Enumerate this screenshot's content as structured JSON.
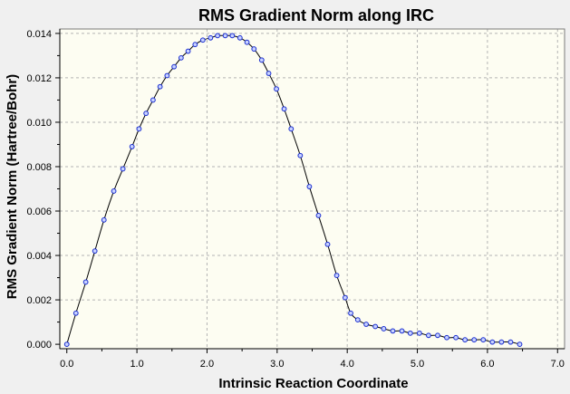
{
  "chart_data": {
    "type": "line",
    "title": "RMS Gradient Norm along IRC",
    "xlabel": "Intrinsic Reaction Coordinate",
    "ylabel": "RMS Gradient Norm (Hartree/Bohr)",
    "xlim": [
      -0.1,
      7.1
    ],
    "ylim": [
      -0.0002,
      0.0142
    ],
    "xticks": [
      0.0,
      1.0,
      2.0,
      3.0,
      4.0,
      5.0,
      6.0,
      7.0
    ],
    "xtick_labels": [
      "0.0",
      "1.0",
      "2.0",
      "3.0",
      "4.0",
      "5.0",
      "6.0",
      "7.0"
    ],
    "yticks": [
      0.0,
      0.002,
      0.004,
      0.006,
      0.008,
      0.01,
      0.012,
      0.014
    ],
    "ytick_labels": [
      "0.000",
      "0.002",
      "0.004",
      "0.006",
      "0.008",
      "0.010",
      "0.012",
      "0.014"
    ],
    "grid": true,
    "x": [
      0.0,
      0.13,
      0.27,
      0.4,
      0.53,
      0.67,
      0.8,
      0.93,
      1.03,
      1.13,
      1.23,
      1.33,
      1.43,
      1.53,
      1.63,
      1.73,
      1.83,
      1.94,
      2.05,
      2.15,
      2.26,
      2.36,
      2.47,
      2.57,
      2.67,
      2.78,
      2.88,
      2.99,
      3.1,
      3.2,
      3.33,
      3.46,
      3.59,
      3.72,
      3.85,
      3.97,
      4.05,
      4.15,
      4.27,
      4.4,
      4.52,
      4.65,
      4.78,
      4.9,
      5.03,
      5.16,
      5.29,
      5.42,
      5.55,
      5.68,
      5.81,
      5.94,
      6.07,
      6.2,
      6.33,
      6.46
    ],
    "y": [
      0.0,
      0.0014,
      0.0028,
      0.0042,
      0.0056,
      0.0069,
      0.0079,
      0.0089,
      0.0097,
      0.0104,
      0.011,
      0.0116,
      0.0121,
      0.0125,
      0.0129,
      0.0132,
      0.0135,
      0.0137,
      0.0138,
      0.0139,
      0.0139,
      0.0139,
      0.0138,
      0.0136,
      0.0133,
      0.0128,
      0.0122,
      0.0115,
      0.0106,
      0.0097,
      0.0085,
      0.0071,
      0.0058,
      0.0045,
      0.0031,
      0.0021,
      0.0014,
      0.0011,
      0.0009,
      0.0008,
      0.0007,
      0.0006,
      0.0006,
      0.0005,
      0.0005,
      0.0004,
      0.0004,
      0.0003,
      0.0003,
      0.0002,
      0.0002,
      0.0002,
      0.0001,
      0.0001,
      0.0001,
      0.0
    ],
    "colors": {
      "background": "#f0f0f0",
      "plot_background": "#fdfdf2",
      "grid": "#b4b4b4",
      "line": "#000000",
      "marker_fill": "#c8d2ff",
      "marker_edge": "#1a2ed0"
    }
  }
}
